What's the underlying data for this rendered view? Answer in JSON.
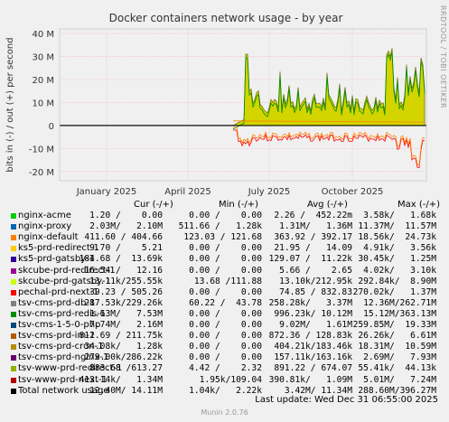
{
  "chart_data": {
    "type": "area",
    "title": "Docker containers network usage - by year",
    "ylabel": "bits in (-) / out (+) per second",
    "y_ticks": [
      "40 M",
      "30 M",
      "20 M",
      "10 M",
      "0",
      "-10 M",
      "-20 M"
    ],
    "y_tick_values": [
      40,
      30,
      20,
      10,
      0,
      -10,
      -20
    ],
    "x_ticks": [
      "January 2025",
      "April 2025",
      "July 2025",
      "October 2025"
    ],
    "ylim": [
      -24,
      42
    ],
    "grid": true,
    "watermark": "RRDTOOL / TOBI OETIKER",
    "footer": "Munin 2.0.76",
    "colors": {
      "total": "#000000",
      "top_line": "#b8b800",
      "axis_red": "#ff0000",
      "zero_line": "#000000"
    }
  },
  "legend": {
    "headers": {
      "cur": "Cur (-/+)",
      "min": "Min (-/+)",
      "avg": "Avg (-/+)",
      "max": "Max (-/+)"
    },
    "rows": [
      {
        "name": "nginx-acme",
        "color": "#00cc00",
        "cur": "1.20 /    0.00",
        "min": "0.00 /    0.00",
        "avg": "2.26 /  452.22m",
        "max": "3.58k/   1.68k"
      },
      {
        "name": "nginx-proxy",
        "color": "#0066b3",
        "cur": "2.03M/   2.10M",
        "min": "511.66 /   1.28k",
        "avg": "1.31M/   1.36M",
        "max": "11.37M/  11.57M"
      },
      {
        "name": "nginx-default",
        "color": "#ff8000",
        "cur": "411.60 / 404.66",
        "min": "123.03 / 121.68",
        "avg": "363.92 / 392.17",
        "max": "18.56k/  24.73k"
      },
      {
        "name": "ks5-prd-redirect-1",
        "color": "#ffcc00",
        "cur": "9.70 /    5.21",
        "min": "0.00 /    0.00",
        "avg": "21.95 /   14.09",
        "max": "4.91k/   3.56k"
      },
      {
        "name": "ks5-prd-gatsby-1",
        "color": "#330099",
        "cur": "184.68 /  13.69k",
        "min": "0.00 /    0.00",
        "avg": "129.07 /  11.22k",
        "max": "30.45k/   1.25M"
      },
      {
        "name": "skcube-prd-redirect-1",
        "color": "#990099",
        "cur": "16.54 /   12.16",
        "min": "0.00 /    0.00",
        "avg": "5.66 /    2.65",
        "max": "4.02k/   3.10k"
      },
      {
        "name": "skcube-prd-gatsby-1",
        "color": "#ccff00",
        "cur": "13.11k/255.55k",
        "min": "13.68 /111.88",
        "avg": "13.10k/212.95k",
        "max": "292.84k/  8.90M"
      },
      {
        "name": "pechal-prd-next-1",
        "color": "#ff0000",
        "cur": "39.23 / 505.26",
        "min": "0.00 /    0.00",
        "avg": "74.85 / 832.83",
        "max": "270.02k/   1.37M"
      },
      {
        "name": "tsv-cms-prd-db-1",
        "color": "#808080",
        "cur": "287.53k/229.26k",
        "min": "60.22 /  43.78",
        "avg": "258.28k/   3.37M",
        "max": "12.36M/262.71M"
      },
      {
        "name": "tsv-cms-prd-redis-1",
        "color": "#008f00",
        "cur": "1.63M/   7.53M",
        "min": "0.00 /    0.00",
        "avg": "996.23k/ 10.12M",
        "max": "15.12M/363.13M"
      },
      {
        "name": "tsv-cms-1-5-0-php",
        "color": "#00487d",
        "cur": "7.74M/   2.16M",
        "min": "0.00 /    0.00",
        "avg": "9.02M/   1.61M",
        "max": "259.85M/  19.33M"
      },
      {
        "name": "tsv-cms-prd-im-1",
        "color": "#b35a00",
        "cur": "812.69 / 211.75k",
        "min": "0.00 /    0.00",
        "avg": "872.36 / 128.83k",
        "max": "26.26k/   6.61M"
      },
      {
        "name": "tsv-cms-prd-cron-1",
        "color": "#b38f00",
        "cur": "34.08k/   1.28k",
        "min": "0.00 /    0.00",
        "avg": "404.21k/183.46k",
        "max": "18.31M/  10.59M"
      },
      {
        "name": "tsv-cms-prd-nginx-1",
        "color": "#6b006b",
        "cur": "279.00k/286.22k",
        "min": "0.00 /    0.00",
        "avg": "157.11k/163.16k",
        "max": "2.69M/   7.93M"
      },
      {
        "name": "tsv-www-prd-redirect-1",
        "color": "#8fb300",
        "cur": "883.68 /613.27",
        "min": "4.42 /    2.32",
        "avg": "891.22 / 674.07",
        "max": "55.41k/  44.13k"
      },
      {
        "name": "tsv-www-prd-next-1",
        "color": "#b30000",
        "cur": "413.14k/   1.34M",
        "min": "1.95k/109.04",
        "avg": "390.81k/   1.09M",
        "max": "5.01M/   7.24M"
      },
      {
        "name": "Total network usage",
        "color": "#000000",
        "cur": "12.40M/ 14.11M",
        "min": "1.04k/   2.22k",
        "avg": "3.42M/ 11.34M",
        "max": "288.60M/396.27M"
      }
    ],
    "last_update": "Last update: Wed Dec 31 06:55:00 2025"
  }
}
